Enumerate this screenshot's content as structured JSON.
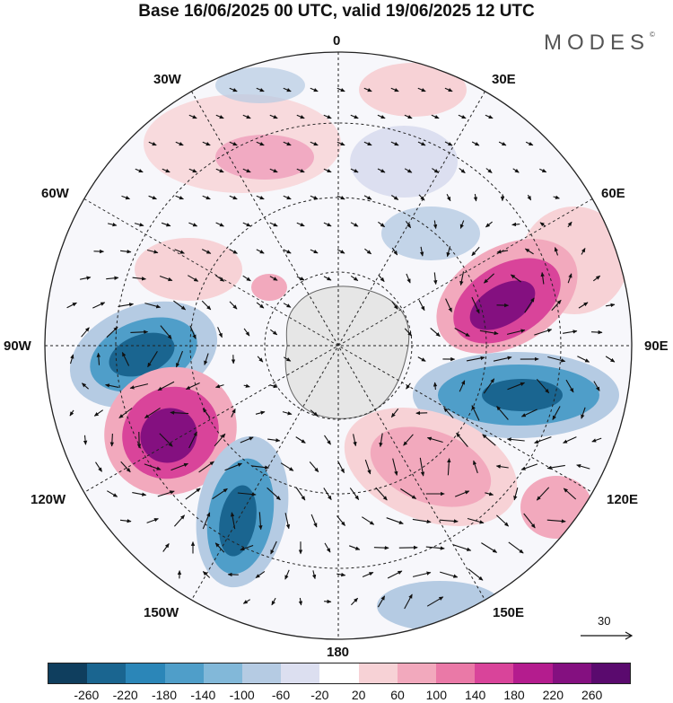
{
  "title": "Base 16/06/2025 00 UTC, valid 19/06/2025 12 UTC",
  "brand": "MODES",
  "brand_mark": "©",
  "longitude_labels": [
    "0",
    "30E",
    "60E",
    "90E",
    "120E",
    "150E",
    "180",
    "150W",
    "120W",
    "90W",
    "60W",
    "30W"
  ],
  "colorbar": {
    "ticks": [
      "-260",
      "-220",
      "-180",
      "-140",
      "-100",
      "-60",
      "-20",
      "20",
      "60",
      "100",
      "140",
      "180",
      "220",
      "260"
    ],
    "colors": [
      "#0f3e5e",
      "#1a6590",
      "#2b86b8",
      "#4f9ec9",
      "#82b8d9",
      "#b5cbe3",
      "#dcdff0",
      "#ffffff",
      "#f7d2d6",
      "#f2a9bd",
      "#ea79a7",
      "#d9449a",
      "#b41c8e",
      "#841080",
      "#5a0a6e"
    ]
  },
  "reference_vector": "30",
  "icons": {
    "arrow": "reference-arrow-icon"
  }
}
